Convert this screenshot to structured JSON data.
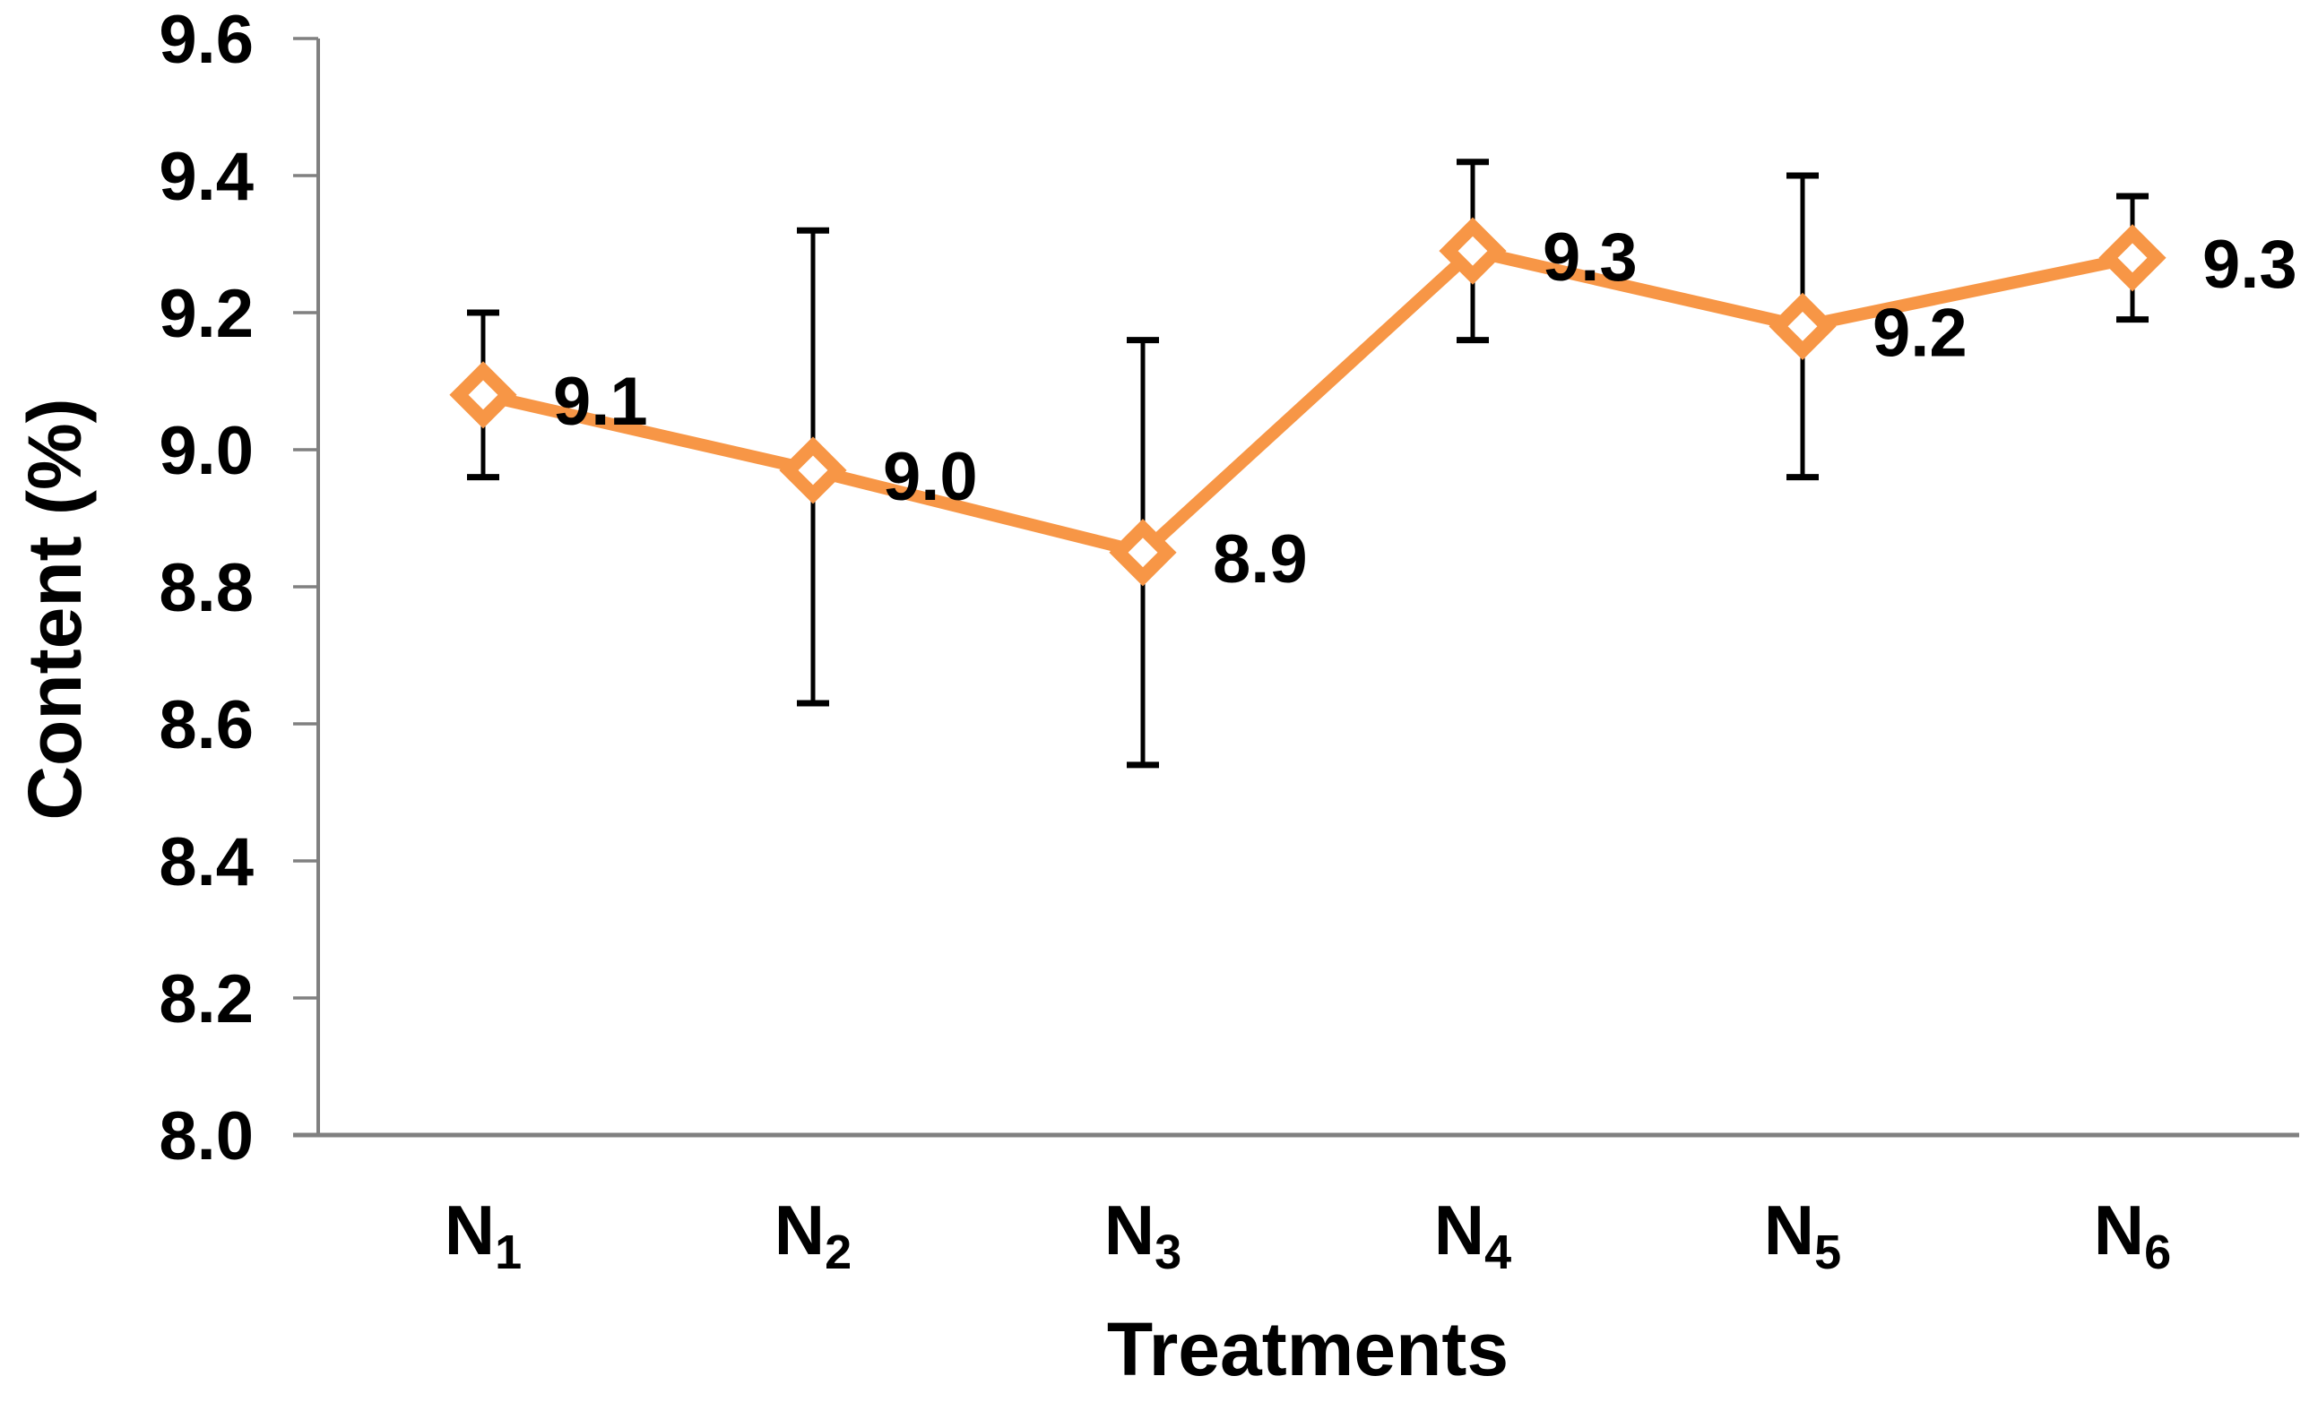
{
  "figure": {
    "background": "#ffffff",
    "axis_color": "#808080",
    "error_bar_color": "#000000",
    "text_color": "#000000"
  },
  "chart_data": {
    "type": "line",
    "title": "",
    "xlabel": "Treatments",
    "ylabel": "Content (%)",
    "categories": [
      {
        "base": "N",
        "sub": "1"
      },
      {
        "base": "N",
        "sub": "2"
      },
      {
        "base": "N",
        "sub": "3"
      },
      {
        "base": "N",
        "sub": "4"
      },
      {
        "base": "N",
        "sub": "5"
      },
      {
        "base": "N",
        "sub": "6"
      }
    ],
    "series": [
      {
        "name": "Content (%)",
        "color": "#F79646",
        "marker": "diamond-open",
        "values": [
          9.08,
          8.97,
          8.85,
          9.29,
          9.18,
          9.28
        ],
        "point_labels": [
          "9.1",
          "9.0",
          "8.9",
          "9.3",
          "9.2",
          "9.3"
        ],
        "error_low": [
          8.96,
          8.63,
          8.54,
          9.16,
          8.96,
          9.19
        ],
        "error_high": [
          9.2,
          9.32,
          9.16,
          9.42,
          9.4,
          9.37
        ]
      }
    ],
    "ylim": [
      8.0,
      9.6
    ],
    "ytick_step": 0.2,
    "ytick_labels": [
      "8.0",
      "8.2",
      "8.4",
      "8.6",
      "8.8",
      "9.0",
      "9.2",
      "9.4",
      "9.6"
    ],
    "grid": false,
    "legend": false
  }
}
